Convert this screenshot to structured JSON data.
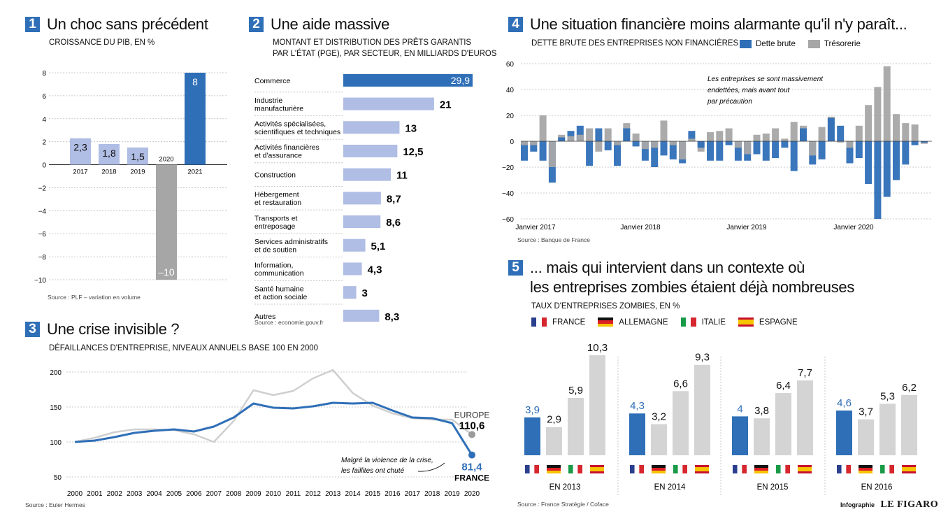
{
  "colors": {
    "blue": "#2f6fb7",
    "light_blue": "#b0bde4",
    "grey": "#a6a6a6",
    "light_grey": "#d4d4d4"
  },
  "panel1": {
    "number": "1",
    "title": "Un choc sans précédent",
    "subtitle": "CROISSANCE DU PIB, EN %",
    "source": "Source : PLF – variation en volume",
    "chart_data": {
      "type": "bar",
      "categories": [
        "2017",
        "2018",
        "2019",
        "2020",
        "2021"
      ],
      "values": [
        2.3,
        1.8,
        1.5,
        -10,
        8
      ],
      "value_labels": [
        "2,3",
        "1,8",
        "1,5",
        "–10",
        "8"
      ],
      "ylim": [
        -10,
        8
      ],
      "yticks": [
        "8",
        "6",
        "4",
        "2",
        "0",
        "−2",
        "−4",
        "−6",
        "−8",
        "−10"
      ],
      "bar_colors": [
        "light_blue",
        "light_blue",
        "light_blue",
        "grey",
        "blue"
      ],
      "grid": true
    }
  },
  "panel2": {
    "number": "2",
    "title": "Une aide massive",
    "subtitle1": "MONTANT ET DISTRIBUTION DES PRÊTS GARANTIS",
    "subtitle2": "PAR L'ÉTAT (PGE), PAR SECTEUR, EN MILLIARDS D'EUROS",
    "source": "Source : economie.gouv.fr",
    "chart_data": {
      "type": "bar",
      "orientation": "horizontal",
      "categories": [
        [
          "Commerce"
        ],
        [
          "Industrie",
          "manufacturière"
        ],
        [
          "Activités spécialisées,",
          "scientifiques et techniques"
        ],
        [
          "Activités financières",
          "et d'assurance"
        ],
        [
          "Construction"
        ],
        [
          "Hébergement",
          "et restauration"
        ],
        [
          "Transports et",
          "entreposage"
        ],
        [
          "Services administratifs",
          "et de soutien"
        ],
        [
          "Information,",
          "communication"
        ],
        [
          "Santé humaine",
          "et action sociale"
        ],
        [
          "Autres"
        ]
      ],
      "values": [
        29.9,
        21,
        13,
        12.5,
        11,
        8.7,
        8.6,
        5.1,
        4.3,
        3,
        8.3
      ],
      "value_labels": [
        "29,9",
        "21",
        "13",
        "12,5",
        "11",
        "8,7",
        "8,6",
        "5,1",
        "4,3",
        "3",
        "8,3"
      ]
    }
  },
  "panel3": {
    "number": "3",
    "title": "Une crise invisible ?",
    "subtitle": "DÉFAILLANCES D'ENTREPRISE, NIVEAUX ANNUELS BASE 100 EN 2000",
    "source": "Source : Euler Hermes",
    "annotation1": "Malgré la violence de la crise,",
    "annotation2": "les faillites ont chuté",
    "chart_data": {
      "type": "line",
      "x": [
        "2000",
        "2001",
        "2002",
        "2003",
        "2004",
        "2005",
        "2006",
        "2007",
        "2008",
        "2009",
        "2010",
        "2011",
        "2012",
        "2013",
        "2014",
        "2015",
        "2016",
        "2017",
        "2018",
        "2019",
        "2020"
      ],
      "yticks": [
        "200",
        "150",
        "100",
        "50"
      ],
      "ylim": [
        50,
        210
      ],
      "series": [
        {
          "name": "EUROPE",
          "values": [
            100,
            106,
            114,
            118,
            118,
            117,
            111,
            100,
            130,
            174,
            167,
            173,
            191,
            203,
            170,
            152,
            141,
            134,
            132,
            132,
            110.6
          ],
          "end_label": "110,6",
          "color": "light_grey"
        },
        {
          "name": "FRANCE",
          "values": [
            100,
            102,
            107,
            113,
            116,
            118,
            115,
            122,
            135,
            155,
            149,
            148,
            151,
            156,
            155,
            156,
            145,
            135,
            134,
            127,
            81.4
          ],
          "end_label": "81,4",
          "color": "blue"
        }
      ]
    }
  },
  "panel4": {
    "number": "4",
    "title": "Une situation financière moins alarmante qu'il n'y paraît...",
    "subtitle": "DETTE BRUTE DES ENTREPRISES NON FINANCIÈRES",
    "source": "Source : Banque de France",
    "annotation1": "Les entreprises se sont massivement",
    "annotation2": "endettées, mais avant tout",
    "annotation3": "par précaution",
    "legend": [
      {
        "label": "Dette brute",
        "color": "blue"
      },
      {
        "label": "Trésorerie",
        "color": "grey"
      }
    ],
    "chart_data": {
      "type": "bar",
      "x_labels": [
        "Janvier 2017",
        "Janvier 2018",
        "Janvier 2019",
        "Janvier 2020"
      ],
      "yticks": [
        "60",
        "40",
        "20",
        "0",
        "−20",
        "−40",
        "−60"
      ],
      "ylim": [
        -60,
        60
      ],
      "series": [
        {
          "name": "Dette brute",
          "values": [
            -15,
            -8,
            -15,
            -32,
            3,
            8,
            12,
            -19,
            10,
            -7,
            -19,
            10,
            -4,
            -15,
            -20,
            -11,
            -14,
            -17,
            8,
            -5,
            -15,
            -15,
            -3,
            -15,
            -15,
            -10,
            -15,
            -13,
            -5,
            -23,
            10,
            -18,
            -14,
            18,
            12,
            -17,
            -13,
            -33,
            -60,
            -43,
            -30,
            -18,
            -3,
            -1
          ]
        },
        {
          "name": "Trésorerie",
          "values": [
            -3,
            -3,
            20,
            -20,
            5,
            4,
            5,
            10,
            -8,
            10,
            -3,
            14,
            6,
            -6,
            -5,
            16,
            -3,
            -14,
            2,
            -8,
            7,
            8,
            10,
            -5,
            -10,
            5,
            6,
            10,
            2,
            15,
            12,
            -11,
            11,
            19,
            -1,
            -5,
            12,
            28,
            42,
            58,
            21,
            14,
            13,
            -2
          ]
        }
      ]
    }
  },
  "panel5": {
    "number": "5",
    "title1": "... mais qui intervient dans un contexte où",
    "title2": "les entreprises zombies étaient déjà nombreuses",
    "subtitle": "TAUX D'ENTREPRISES ZOMBIES, EN %",
    "source": "Source : France Stratégie / Coface",
    "legend": [
      "FRANCE",
      "ALLEMAGNE",
      "ITALIE",
      "ESPAGNE"
    ],
    "chart_data": {
      "type": "bar",
      "groups": [
        "EN 2013",
        "EN 2014",
        "EN 2015",
        "EN 2016"
      ],
      "series": [
        {
          "name": "FRANCE",
          "values": [
            3.9,
            4.3,
            4,
            4.6
          ],
          "labels": [
            "3,9",
            "4,3",
            "4",
            "4,6"
          ],
          "color": "blue"
        },
        {
          "name": "ALLEMAGNE",
          "values": [
            2.9,
            3.2,
            3.8,
            3.7
          ],
          "labels": [
            "2,9",
            "3,2",
            "3,8",
            "3,7"
          ],
          "color": "light_grey"
        },
        {
          "name": "ITALIE",
          "values": [
            5.9,
            6.6,
            6.4,
            5.3
          ],
          "labels": [
            "5,9",
            "6,6",
            "6,4",
            "5,3"
          ],
          "color": "light_grey"
        },
        {
          "name": "ESPAGNE",
          "values": [
            10.3,
            9.3,
            7.7,
            6.2
          ],
          "labels": [
            "10,3",
            "9,3",
            "7,7",
            "6,2"
          ],
          "color": "light_grey"
        }
      ]
    }
  },
  "credit": {
    "prefix": "Infographie",
    "brand": "LE FIGARO"
  }
}
